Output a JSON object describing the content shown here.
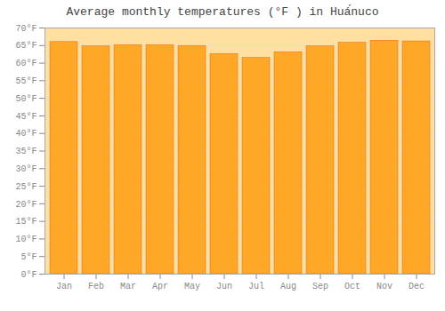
{
  "chart_data": {
    "type": "bar",
    "title": "Average monthly temperatures (°F ) in Huá́nuco",
    "categories": [
      "Jan",
      "Feb",
      "Mar",
      "Apr",
      "May",
      "Jun",
      "Jul",
      "Aug",
      "Sep",
      "Oct",
      "Nov",
      "Dec"
    ],
    "values": [
      66.0,
      64.8,
      65.1,
      65.1,
      64.9,
      62.6,
      61.5,
      63.1,
      64.8,
      65.8,
      66.4,
      66.2
    ],
    "color": "#FFA726",
    "ylim": [
      0,
      70
    ],
    "yticks": [
      {
        "value": 0,
        "label": "0°F"
      },
      {
        "value": 5,
        "label": "5°F"
      },
      {
        "value": 10,
        "label": "10°F"
      },
      {
        "value": 15,
        "label": "15°F"
      },
      {
        "value": 20,
        "label": "20°F"
      },
      {
        "value": 25,
        "label": "25°F"
      },
      {
        "value": 30,
        "label": "30°F"
      },
      {
        "value": 35,
        "label": "35°F"
      },
      {
        "value": 40,
        "label": "40°F"
      },
      {
        "value": 45,
        "label": "45°F"
      },
      {
        "value": 50,
        "label": "50°F"
      },
      {
        "value": 55,
        "label": "55°F"
      },
      {
        "value": 60,
        "label": "60°F"
      },
      {
        "value": 65,
        "label": "65°F"
      },
      {
        "value": 70,
        "label": "70°F"
      }
    ],
    "grid": true
  }
}
